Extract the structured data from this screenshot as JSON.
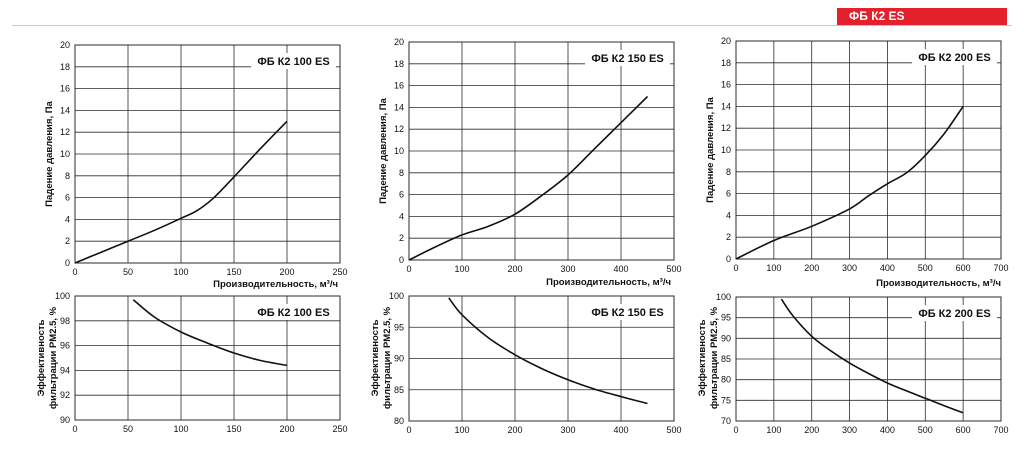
{
  "header": {
    "badge": "ФБ К2 ES",
    "accent_color": "#e3202b"
  },
  "chart_data": [
    {
      "type": "line",
      "title": "ФБ К2 100 ES",
      "xlabel": "Производительность, м³/ч",
      "ylabel": "Падение давления, Па",
      "xlim": [
        0,
        250
      ],
      "ylim": [
        0,
        20
      ],
      "xticks": [
        0,
        50,
        100,
        150,
        200,
        250
      ],
      "yticks": [
        0,
        2,
        4,
        6,
        8,
        10,
        12,
        14,
        16,
        18,
        20
      ],
      "grid": true,
      "series": [
        {
          "x": [
            0,
            25,
            50,
            75,
            100,
            115,
            130,
            150,
            175,
            200
          ],
          "y": [
            0,
            1.0,
            2.0,
            3.0,
            4.1,
            4.8,
            5.9,
            7.9,
            10.5,
            13.0
          ]
        }
      ]
    },
    {
      "type": "line",
      "title": "ФБ К2 150 ES",
      "xlabel": "Производительность, м³/ч",
      "ylabel": "Падение давления, Па",
      "xlim": [
        0,
        500
      ],
      "ylim": [
        0,
        20
      ],
      "xticks": [
        0,
        100,
        200,
        300,
        400,
        500
      ],
      "yticks": [
        0,
        2,
        4,
        6,
        8,
        10,
        12,
        14,
        16,
        18,
        20
      ],
      "grid": true,
      "series": [
        {
          "x": [
            0,
            50,
            100,
            150,
            200,
            250,
            300,
            350,
            400,
            450
          ],
          "y": [
            0,
            1.2,
            2.3,
            3.1,
            4.2,
            5.9,
            7.8,
            10.2,
            12.6,
            15.0
          ]
        }
      ]
    },
    {
      "type": "line",
      "title": "ФБ К2 200 ES",
      "xlabel": "Производительность, м³/ч",
      "ylabel": "Падение давления, Па",
      "xlim": [
        0,
        700
      ],
      "ylim": [
        0,
        20
      ],
      "xticks": [
        0,
        100,
        200,
        300,
        400,
        500,
        600,
        700
      ],
      "yticks": [
        0,
        2,
        4,
        6,
        8,
        10,
        12,
        14,
        16,
        18,
        20
      ],
      "grid": true,
      "series": [
        {
          "x": [
            0,
            100,
            200,
            300,
            350,
            400,
            450,
            500,
            550,
            600
          ],
          "y": [
            0,
            1.7,
            3.0,
            4.6,
            5.8,
            6.9,
            7.9,
            9.5,
            11.5,
            14.0
          ]
        }
      ]
    },
    {
      "type": "line",
      "title": "ФБ К2 100 ES",
      "xlabel": "",
      "ylabel": "Эффективность фильтрации PM2.5, %",
      "xlim": [
        0,
        250
      ],
      "ylim": [
        90,
        100
      ],
      "xticks": [
        0,
        50,
        100,
        150,
        200,
        250
      ],
      "yticks": [
        90,
        92,
        94,
        96,
        98,
        100
      ],
      "grid": true,
      "series": [
        {
          "x": [
            55,
            75,
            100,
            125,
            150,
            175,
            200
          ],
          "y": [
            99.7,
            98.3,
            97.1,
            96.2,
            95.4,
            94.8,
            94.4
          ]
        }
      ]
    },
    {
      "type": "line",
      "title": "ФБ К2 150 ES",
      "xlabel": "",
      "ylabel": "Эффективность фильтрации PM2.5, %",
      "xlim": [
        0,
        500
      ],
      "ylim": [
        80,
        100
      ],
      "xticks": [
        0,
        100,
        200,
        300,
        400,
        500
      ],
      "yticks": [
        80,
        85,
        90,
        95,
        100
      ],
      "grid": true,
      "series": [
        {
          "x": [
            75,
            100,
            150,
            200,
            250,
            300,
            350,
            400,
            450
          ],
          "y": [
            99.7,
            97.0,
            93.3,
            90.6,
            88.4,
            86.6,
            85.1,
            83.9,
            82.8
          ]
        }
      ]
    },
    {
      "type": "line",
      "title": "ФБ К2 200 ES",
      "xlabel": "",
      "ylabel": "Эффективность фильтрации PM2.5, %",
      "xlim": [
        0,
        700
      ],
      "ylim": [
        70,
        100
      ],
      "xticks": [
        0,
        100,
        200,
        300,
        400,
        500,
        600,
        700
      ],
      "yticks": [
        70,
        75,
        80,
        85,
        90,
        95,
        100
      ],
      "grid": true,
      "series": [
        {
          "x": [
            120,
            150,
            200,
            250,
            300,
            350,
            400,
            450,
            500,
            550,
            600
          ],
          "y": [
            99.5,
            95.5,
            90.5,
            87.0,
            84.0,
            81.5,
            79.2,
            77.3,
            75.5,
            73.7,
            72.0
          ]
        }
      ]
    }
  ]
}
